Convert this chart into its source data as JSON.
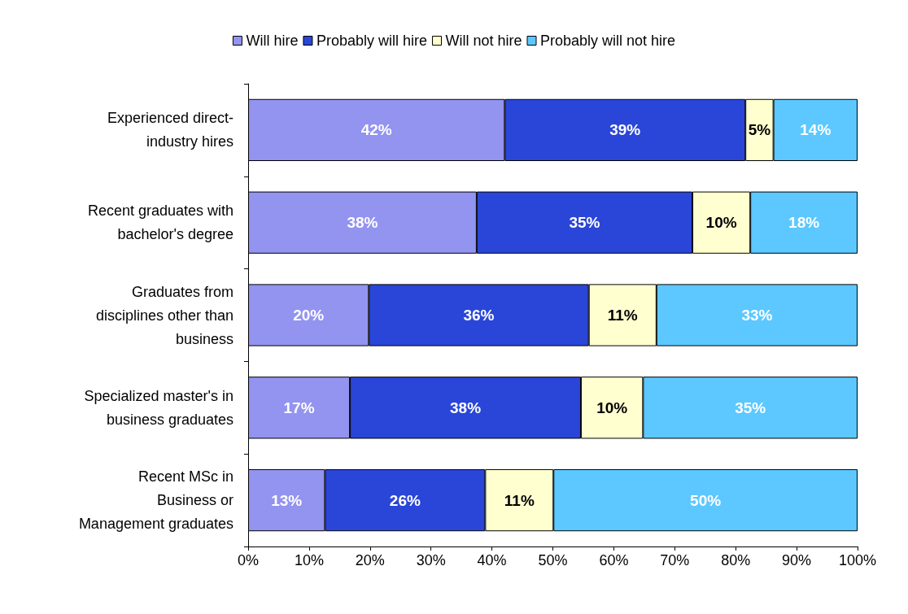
{
  "chart_data": {
    "type": "bar",
    "orientation": "horizontal",
    "stacked": true,
    "categories": [
      "Experienced direct-\nindustry hires",
      "Recent graduates with\nbachelor's degree",
      "Graduates from\ndisciplines other than\nbusiness",
      "Specialized master's in\nbusiness graduates",
      "Recent MSc in\nBusiness or\nManagement graduates"
    ],
    "series": [
      {
        "name": "Will hire",
        "color": "#9393f0",
        "values": [
          42.1,
          37.5,
          19.8,
          16.7,
          12.6
        ],
        "value_labels": [
          "42%",
          "38%",
          "20%",
          "17%",
          "13%"
        ]
      },
      {
        "name": "Probably will hire",
        "color": "#2a46d8",
        "values": [
          39.5,
          35.4,
          36.1,
          37.9,
          26.3
        ],
        "value_labels": [
          "39%",
          "35%",
          "36%",
          "38%",
          "26%"
        ]
      },
      {
        "name": "Will not hire",
        "color": "#ffffd0",
        "values": [
          4.6,
          9.5,
          11.1,
          10.2,
          11.2
        ],
        "value_labels": [
          "5%",
          "10%",
          "11%",
          "10%",
          "11%"
        ]
      },
      {
        "name": "Probably will not hire",
        "color": "#5cc8ff",
        "values": [
          13.8,
          17.6,
          33.0,
          35.2,
          49.9
        ],
        "value_labels": [
          "14%",
          "18%",
          "33%",
          "35%",
          "50%"
        ]
      }
    ],
    "xlim": [
      0,
      100
    ],
    "xticks": [
      {
        "value": 0,
        "label": "0%"
      },
      {
        "value": 10,
        "label": "10%"
      },
      {
        "value": 20,
        "label": "20%"
      },
      {
        "value": 30,
        "label": "30%"
      },
      {
        "value": 40,
        "label": "40%"
      },
      {
        "value": 50,
        "label": "50%"
      },
      {
        "value": 60,
        "label": "60%"
      },
      {
        "value": 70,
        "label": "70%"
      },
      {
        "value": 80,
        "label": "80%"
      },
      {
        "value": 90,
        "label": "90%"
      },
      {
        "value": 100,
        "label": "100%"
      }
    ],
    "grid": false,
    "legend": "top"
  }
}
